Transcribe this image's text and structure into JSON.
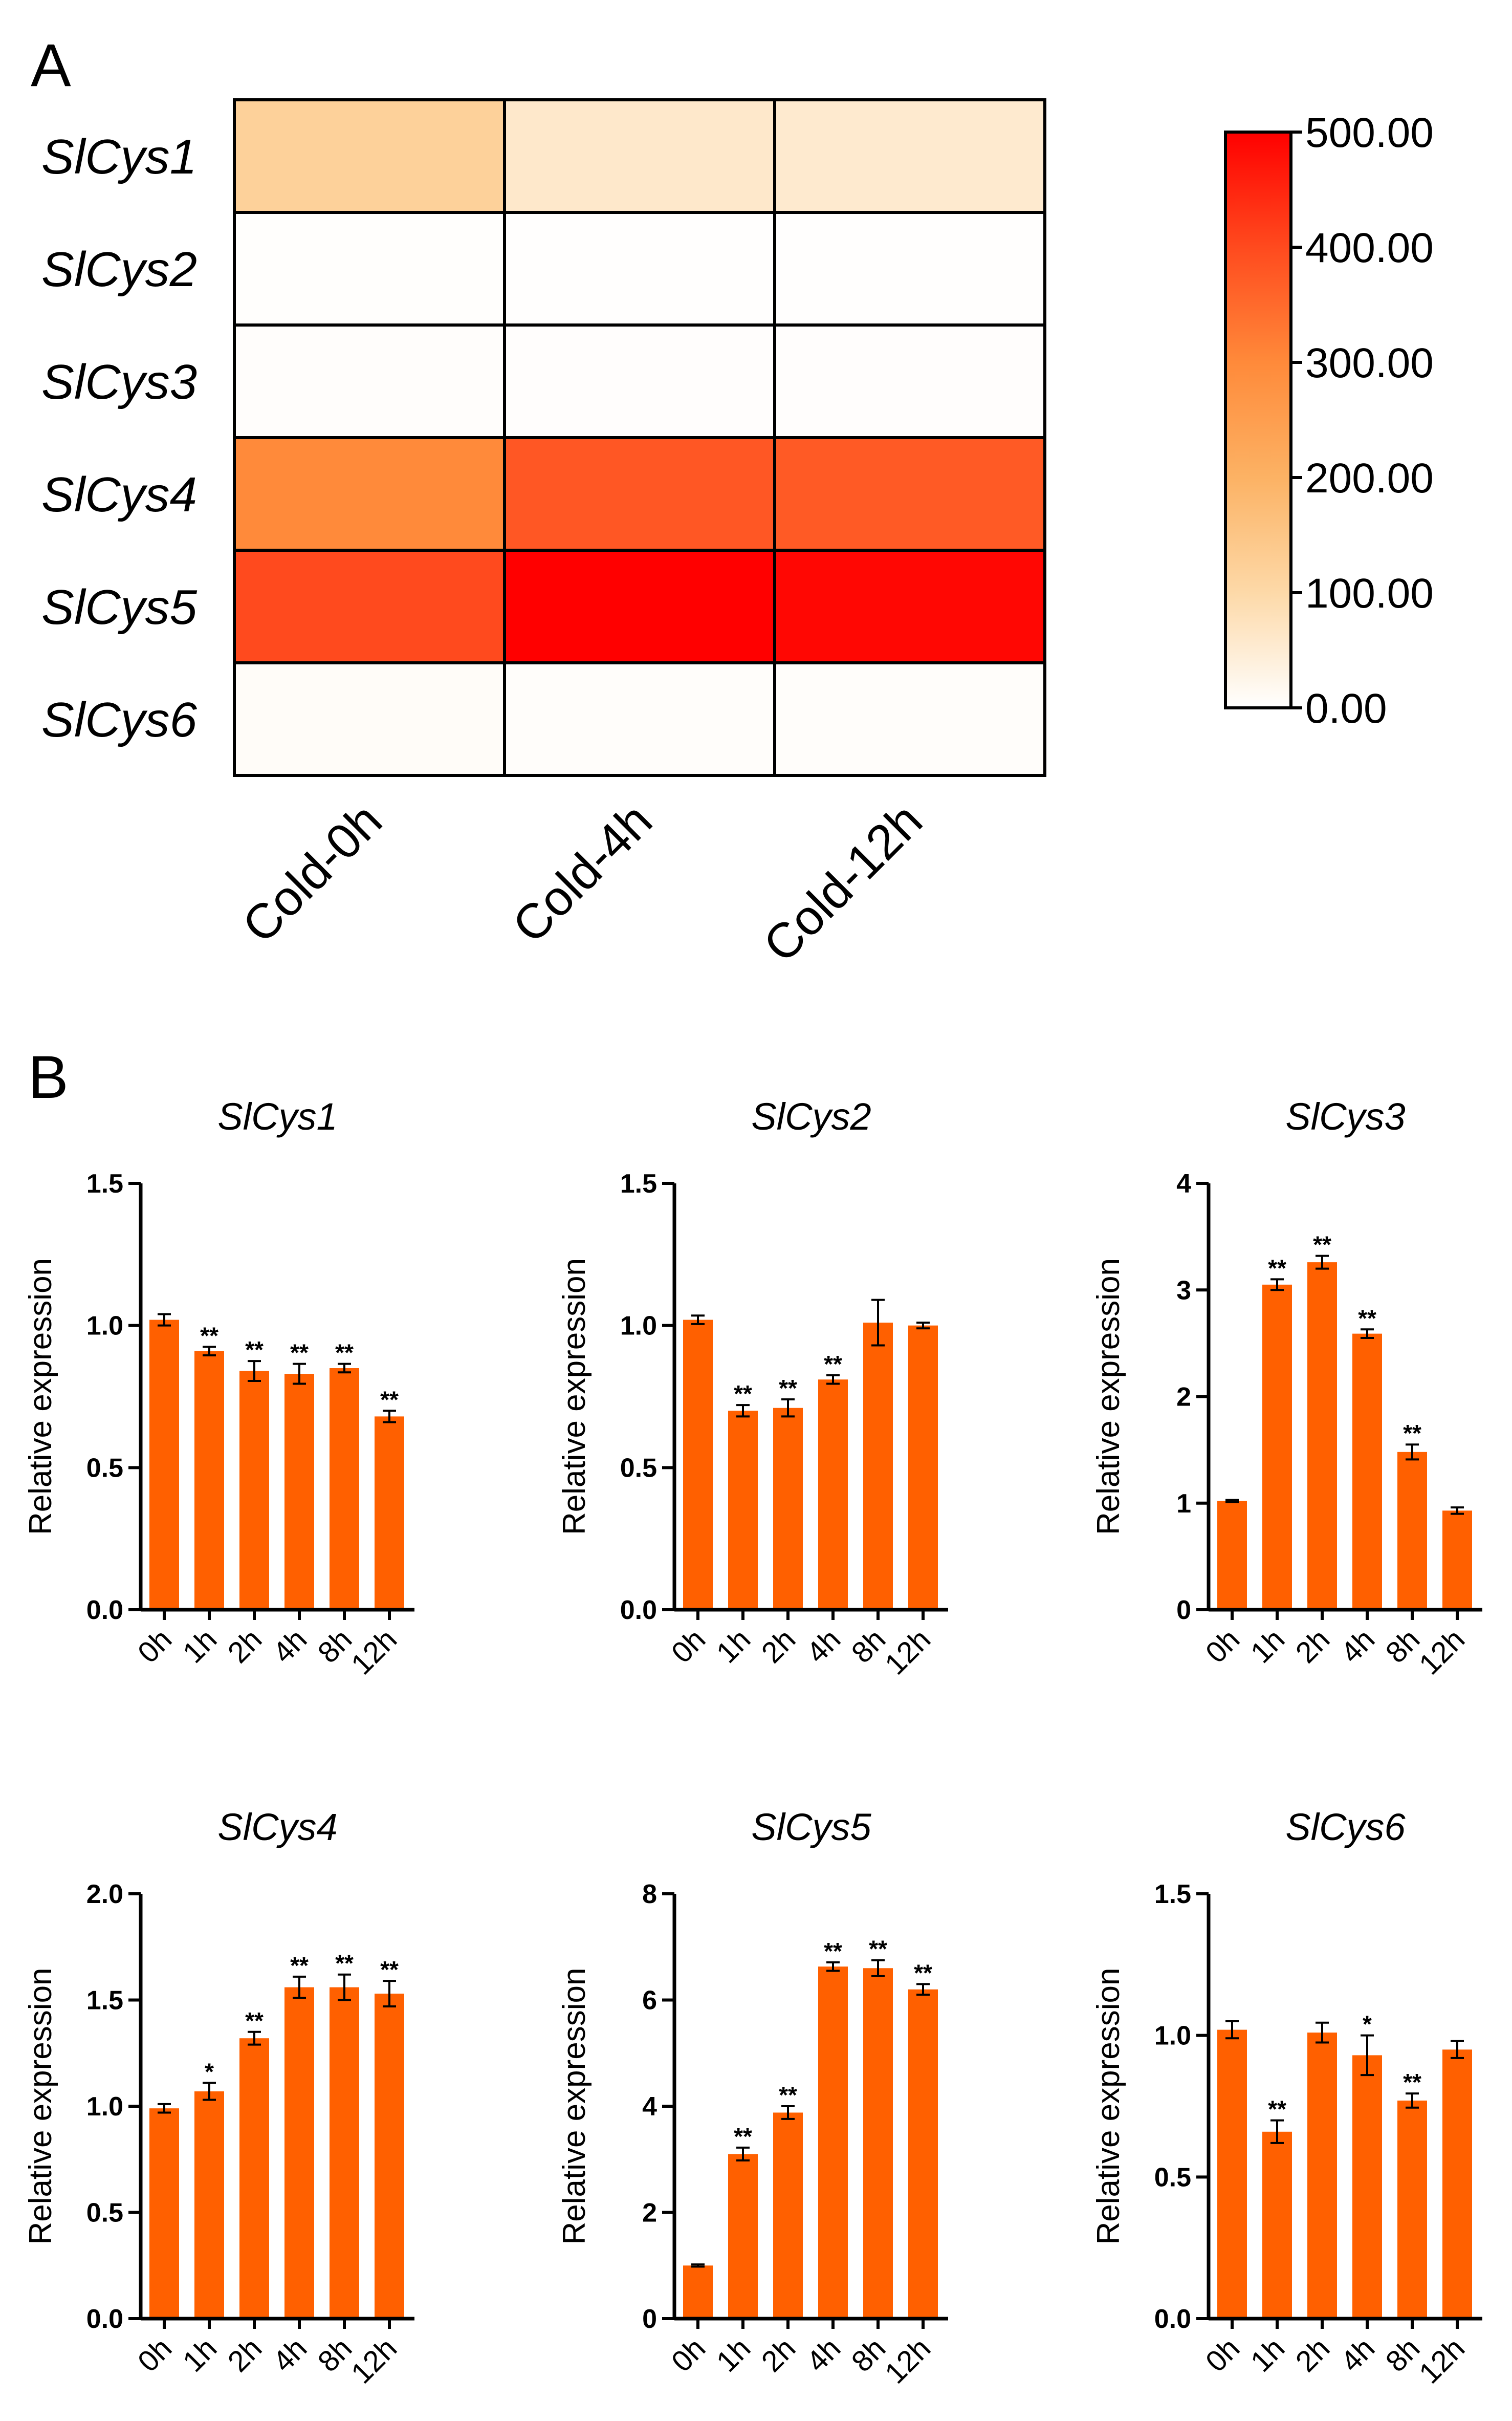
{
  "colors": {
    "bar": "#ff6000",
    "heatmap_scale": [
      "#ffffff",
      "#fdd9a8",
      "#fcb264",
      "#ff8a3a",
      "#ff4a1e",
      "#ff0000"
    ]
  },
  "heatmap": {
    "panel_label": "A",
    "type": "heatmap",
    "genes": [
      "SlCys1",
      "SlCys2",
      "SlCys3",
      "SlCys4",
      "SlCys5",
      "SlCys6"
    ],
    "conditions": [
      "Cold-0h",
      "Cold-4h",
      "Cold-12h"
    ],
    "values": [
      [
        120,
        60,
        55
      ],
      [
        3,
        2,
        2
      ],
      [
        5,
        4,
        4
      ],
      [
        300,
        380,
        375
      ],
      [
        400,
        500,
        490
      ],
      [
        8,
        6,
        6
      ]
    ],
    "colorbar_ticks": [
      "500.00",
      "400.00",
      "300.00",
      "200.00",
      "100.00",
      "0.00"
    ],
    "range": [
      0,
      500
    ]
  },
  "chart_data": [
    {
      "type": "bar",
      "title": "SlCys1",
      "ylabel": "Relative expression",
      "categories": [
        "0h",
        "1h",
        "2h",
        "4h",
        "8h",
        "12h"
      ],
      "values": [
        1.02,
        0.91,
        0.84,
        0.83,
        0.85,
        0.68
      ],
      "errors": [
        0.02,
        0.015,
        0.035,
        0.035,
        0.015,
        0.02
      ],
      "significance": [
        "",
        "**",
        "**",
        "**",
        "**",
        "**"
      ],
      "ylim": [
        0,
        1.5
      ],
      "yticks": [
        "0.0",
        "0.5",
        "1.0",
        "1.5"
      ]
    },
    {
      "type": "bar",
      "title": "SlCys2",
      "ylabel": "Relative expression",
      "categories": [
        "0h",
        "1h",
        "2h",
        "4h",
        "8h",
        "12h"
      ],
      "values": [
        1.02,
        0.7,
        0.71,
        0.81,
        1.01,
        1.0
      ],
      "errors": [
        0.015,
        0.02,
        0.03,
        0.015,
        0.08,
        0.01
      ],
      "significance": [
        "",
        "**",
        "**",
        "**",
        "",
        ""
      ],
      "ylim": [
        0,
        1.5
      ],
      "yticks": [
        "0.0",
        "0.5",
        "1.0",
        "1.5"
      ]
    },
    {
      "type": "bar",
      "title": "SlCys3",
      "ylabel": "Relative expression",
      "categories": [
        "0h",
        "1h",
        "2h",
        "4h",
        "8h",
        "12h"
      ],
      "values": [
        1.02,
        3.05,
        3.26,
        2.59,
        1.48,
        0.93
      ],
      "errors": [
        0.01,
        0.05,
        0.06,
        0.04,
        0.07,
        0.03
      ],
      "significance": [
        "",
        "**",
        "**",
        "**",
        "**",
        ""
      ],
      "ylim": [
        0,
        4
      ],
      "yticks": [
        "0",
        "1",
        "2",
        "3",
        "4"
      ]
    },
    {
      "type": "bar",
      "title": "SlCys4",
      "ylabel": "Relative expression",
      "categories": [
        "0h",
        "1h",
        "2h",
        "4h",
        "8h",
        "12h"
      ],
      "values": [
        0.99,
        1.07,
        1.32,
        1.56,
        1.56,
        1.53
      ],
      "errors": [
        0.02,
        0.04,
        0.03,
        0.05,
        0.06,
        0.06
      ],
      "significance": [
        "",
        "*",
        "**",
        "**",
        "**",
        "**"
      ],
      "ylim": [
        0,
        2.0
      ],
      "yticks": [
        "0.0",
        "0.5",
        "1.0",
        "1.5",
        "2.0"
      ]
    },
    {
      "type": "bar",
      "title": "SlCys5",
      "ylabel": "Relative expression",
      "categories": [
        "0h",
        "1h",
        "2h",
        "4h",
        "8h",
        "12h"
      ],
      "values": [
        1.0,
        3.1,
        3.88,
        6.63,
        6.6,
        6.2
      ],
      "errors": [
        0.02,
        0.12,
        0.12,
        0.08,
        0.15,
        0.1
      ],
      "significance": [
        "",
        "**",
        "**",
        "**",
        "**",
        "**"
      ],
      "ylim": [
        0,
        8
      ],
      "yticks": [
        "0",
        "2",
        "4",
        "6",
        "8"
      ]
    },
    {
      "type": "bar",
      "title": "SlCys6",
      "ylabel": "Relative expression",
      "categories": [
        "0h",
        "1h",
        "2h",
        "4h",
        "8h",
        "12h"
      ],
      "values": [
        1.02,
        0.66,
        1.01,
        0.93,
        0.77,
        0.95
      ],
      "errors": [
        0.03,
        0.04,
        0.035,
        0.07,
        0.025,
        0.03
      ],
      "significance": [
        "",
        "**",
        "",
        "*",
        "**",
        ""
      ],
      "ylim": [
        0,
        1.5
      ],
      "yticks": [
        "0.0",
        "0.5",
        "1.0",
        "1.5"
      ]
    }
  ],
  "panel_b_label": "B"
}
